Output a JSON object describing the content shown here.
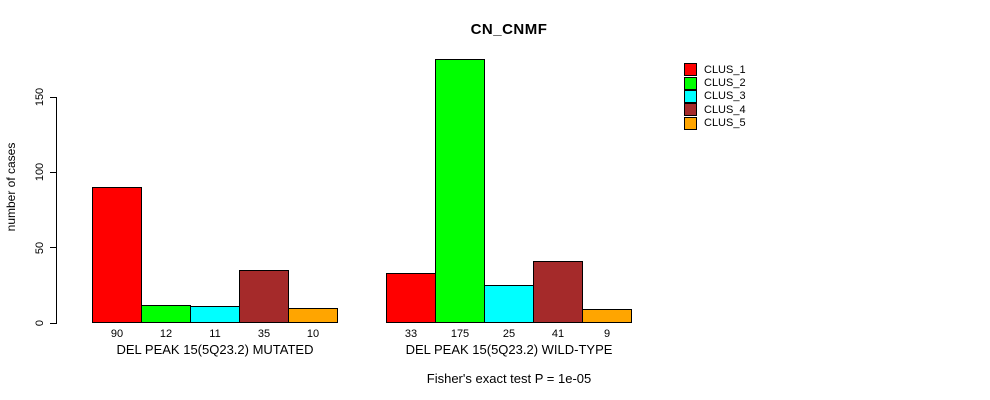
{
  "chart_data": {
    "type": "bar",
    "title": "CN_CNMF",
    "ylabel": "number of cases",
    "yticks": [
      0,
      50,
      100,
      150
    ],
    "ylim": [
      0,
      175
    ],
    "grid": false,
    "legend_position": "top-right",
    "series_names": [
      "CLUS_1",
      "CLUS_2",
      "CLUS_3",
      "CLUS_4",
      "CLUS_5"
    ],
    "colors": [
      "#FF0000",
      "#00FF00",
      "#00FFFF",
      "#A52A2A",
      "#FFA500"
    ],
    "groups": [
      {
        "label": "DEL PEAK 15(5Q23.2) MUTATED",
        "values": [
          90,
          12,
          11,
          35,
          10
        ]
      },
      {
        "label": "DEL PEAK 15(5Q23.2) WILD-TYPE",
        "values": [
          33,
          175,
          25,
          41,
          9
        ]
      }
    ],
    "annotation": "Fisher's exact test P = 1e-05"
  }
}
